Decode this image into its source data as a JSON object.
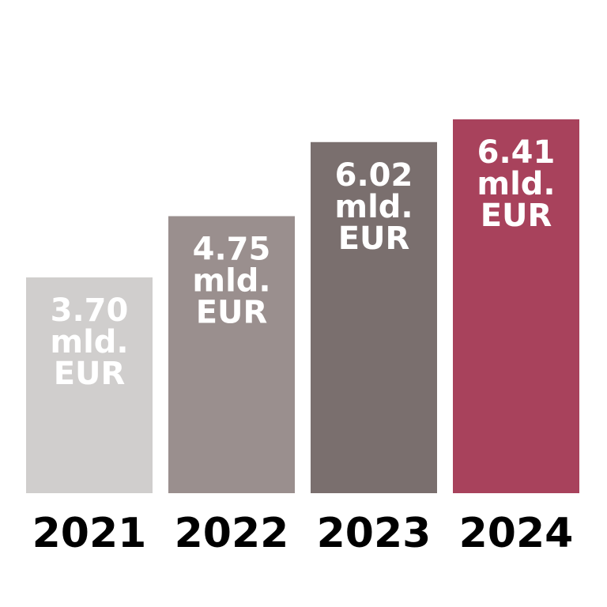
{
  "chart_data": {
    "type": "bar",
    "categories": [
      "2021",
      "2022",
      "2023",
      "2024"
    ],
    "values": [
      3.7,
      4.75,
      6.02,
      6.41
    ],
    "data_labels": [
      [
        "3.70",
        "mld.",
        "EUR"
      ],
      [
        "4.75",
        "mld.",
        "EUR"
      ],
      [
        "6.02",
        "mld.",
        "EUR"
      ],
      [
        "6.41",
        "mld.",
        "EUR"
      ]
    ],
    "colors": [
      "#d0cecd",
      "#9a8f8e",
      "#7a6f6e",
      "#a8425c"
    ],
    "label_text_color": "#ffffff",
    "category_text_color": "#000000",
    "ylim": [
      0,
      6.41
    ],
    "grid": false,
    "legend": "none"
  }
}
